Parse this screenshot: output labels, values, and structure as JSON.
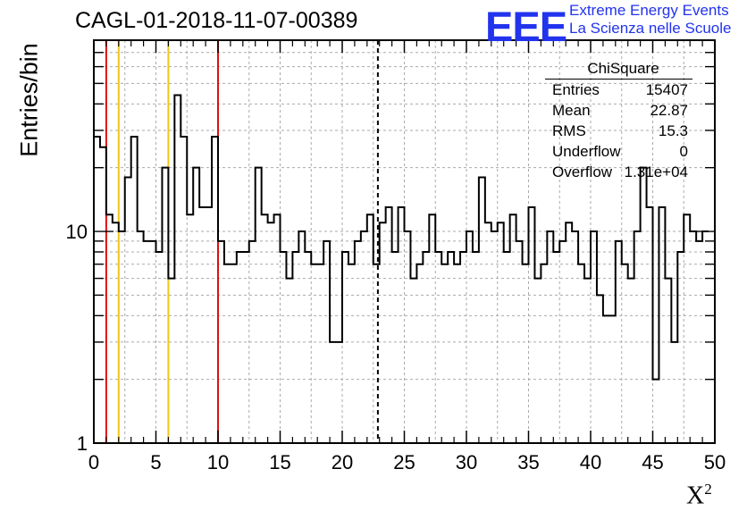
{
  "header": {
    "title": "CAGL-01-2018-11-07-00389",
    "logo_text": "EEE",
    "brand_line1": "Extreme Energy Events",
    "brand_line2": "La Scienza nelle Scuole",
    "brand_color": "#2233ee"
  },
  "stats_box": {
    "title": "ChiSquare",
    "rows": [
      {
        "label": "Entries",
        "value": "15407"
      },
      {
        "label": "Mean",
        "value": "22.87"
      },
      {
        "label": "RMS",
        "value": "15.3"
      },
      {
        "label": "Underflow",
        "value": "0"
      },
      {
        "label": "Overflow",
        "value": "1.31e+04"
      }
    ]
  },
  "chart_data": {
    "type": "histogram",
    "title": "CAGL-01-2018-11-07-00389",
    "xlabel": "X²",
    "ylabel": "Entries/bin",
    "xlim": [
      0,
      50
    ],
    "ylim": [
      1,
      80
    ],
    "y_scale": "log",
    "grid": true,
    "bin_width": 0.5,
    "x_ticks": [
      0,
      5,
      10,
      15,
      20,
      25,
      30,
      35,
      40,
      45,
      50
    ],
    "x_tick_labels": [
      "0",
      "5",
      "10",
      "15",
      "20",
      "25",
      "30",
      "35",
      "40",
      "45",
      "50"
    ],
    "y_ticks": [
      1,
      10
    ],
    "y_tick_labels": [
      "1",
      "10"
    ],
    "values": [
      28,
      25,
      12,
      11,
      10,
      18,
      28,
      10,
      9,
      9,
      8,
      20,
      6,
      44,
      28,
      12,
      20,
      13,
      13,
      28,
      9,
      7,
      7,
      8,
      8,
      9,
      20,
      12,
      11,
      12,
      8,
      6,
      8,
      10,
      8,
      7,
      7,
      9,
      3,
      3,
      8,
      7,
      9,
      10,
      12,
      7,
      11,
      13,
      8,
      13,
      10,
      6,
      7,
      8,
      12,
      8,
      7,
      8,
      7,
      8,
      10,
      8,
      18,
      11,
      10,
      11,
      8,
      12,
      9,
      7,
      13,
      6,
      7,
      10,
      8,
      9,
      11,
      10,
      7,
      6,
      10,
      5,
      4,
      4,
      9,
      7,
      6,
      10,
      20,
      13,
      2,
      13,
      6,
      3,
      8,
      12,
      10,
      9,
      10
    ],
    "markers": [
      {
        "x": 1,
        "color": "#dd1111",
        "style": "solid"
      },
      {
        "x": 2,
        "color": "#f0c419",
        "style": "solid"
      },
      {
        "x": 6,
        "color": "#f0c419",
        "style": "solid"
      },
      {
        "x": 10,
        "color": "#dd1111",
        "style": "solid"
      },
      {
        "x": 22.87,
        "color": "#000000",
        "style": "dashed"
      }
    ]
  }
}
